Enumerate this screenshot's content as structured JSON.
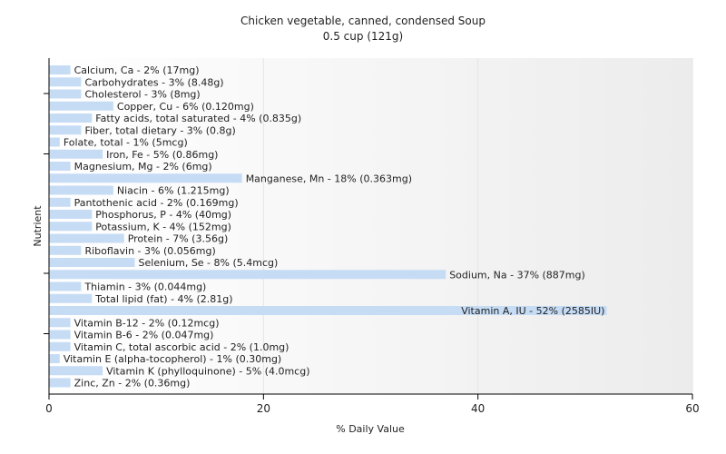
{
  "chart_data": {
    "type": "bar",
    "orientation": "horizontal",
    "title": "Chicken vegetable, canned, condensed Soup",
    "subtitle": "0.5 cup (121g)",
    "xlabel": "% Daily Value",
    "ylabel": "Nutrient",
    "xlim": [
      0,
      60
    ],
    "xticks": [
      0,
      20,
      40,
      60
    ],
    "grid": true,
    "legend": "none",
    "bar_color": "#c6dcf5",
    "categories": [
      "Calcium, Ca - 2% (17mg)",
      "Carbohydrates - 3% (8.48g)",
      "Cholesterol - 3% (8mg)",
      "Copper, Cu - 6% (0.120mg)",
      "Fatty acids, total saturated - 4% (0.835g)",
      "Fiber, total dietary - 3% (0.8g)",
      "Folate, total - 1% (5mcg)",
      "Iron, Fe - 5% (0.86mg)",
      "Magnesium, Mg - 2% (6mg)",
      "Manganese, Mn - 18% (0.363mg)",
      "Niacin - 6% (1.215mg)",
      "Pantothenic acid - 2% (0.169mg)",
      "Phosphorus, P - 4% (40mg)",
      "Potassium, K - 4% (152mg)",
      "Protein - 7% (3.56g)",
      "Riboflavin - 3% (0.056mg)",
      "Selenium, Se - 8% (5.4mcg)",
      "Sodium, Na - 37% (887mg)",
      "Thiamin - 3% (0.044mg)",
      "Total lipid (fat) - 4% (2.81g)",
      "Vitamin A, IU - 52% (2585IU)",
      "Vitamin B-12 - 2% (0.12mcg)",
      "Vitamin B-6 - 2% (0.047mg)",
      "Vitamin C, total ascorbic acid - 2% (1.0mg)",
      "Vitamin E (alpha-tocopherol) - 1% (0.30mg)",
      "Vitamin K (phylloquinone) - 5% (4.0mcg)",
      "Zinc, Zn - 2% (0.36mg)"
    ],
    "values": [
      2,
      3,
      3,
      6,
      4,
      3,
      1,
      5,
      2,
      18,
      6,
      2,
      4,
      4,
      7,
      3,
      8,
      37,
      3,
      4,
      52,
      2,
      2,
      2,
      1,
      5,
      2
    ]
  }
}
